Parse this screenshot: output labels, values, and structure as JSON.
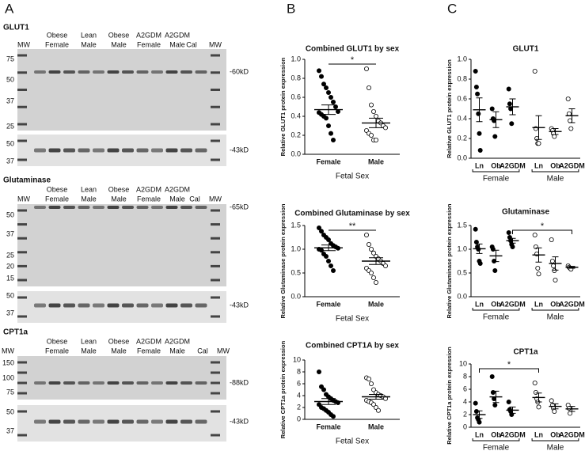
{
  "panel_a": {
    "letter": "A",
    "blots": [
      {
        "title": "GLUT1",
        "lanes": [
          {
            "lines": [
              "MW"
            ]
          },
          {
            "lines": [
              "Obese",
              "Female"
            ]
          },
          {
            "lines": [
              "Lean",
              "Male"
            ]
          },
          {
            "lines": [
              "Obese",
              "Male"
            ]
          },
          {
            "lines": [
              "A2GDM",
              "Female"
            ]
          },
          {
            "lines": [
              "A2GDM",
              "Male"
            ]
          },
          {
            "lines": [
              "Cal"
            ]
          },
          {
            "lines": [
              "MW"
            ]
          }
        ],
        "markers": [
          "75",
          "50",
          "37",
          "25"
        ],
        "band_label": "-60kD",
        "loading_markers": [
          "50",
          "37"
        ],
        "loading_label": "-43kD"
      },
      {
        "title": "Glutaminase",
        "lanes": [
          {
            "lines": [
              "MW"
            ]
          },
          {
            "lines": [
              "Obese",
              "Female"
            ]
          },
          {
            "lines": [
              "Lean",
              "Male"
            ]
          },
          {
            "lines": [
              "Obese",
              "Male"
            ]
          },
          {
            "lines": [
              "A2GDM",
              "Female"
            ]
          },
          {
            "lines": [
              "A2GDM",
              "Male"
            ]
          },
          {
            "lines": [
              "Cal"
            ]
          },
          {
            "lines": [
              "MW"
            ]
          }
        ],
        "markers": [
          "50",
          "37",
          "25",
          "20",
          "15"
        ],
        "band_label": "-65kD",
        "loading_markers": [
          "50",
          "37"
        ],
        "loading_label": "-43kD"
      },
      {
        "title": "CPT1a",
        "lanes": [
          {
            "lines": [
              "MW"
            ]
          },
          {
            "lines": [
              "Obese",
              "Female"
            ]
          },
          {
            "lines": [
              "Lean",
              "Male"
            ]
          },
          {
            "lines": [
              "Obese",
              "Male"
            ]
          },
          {
            "lines": [
              "A2GDM",
              "Female"
            ]
          },
          {
            "lines": [
              "A2GDM",
              "Male"
            ]
          },
          {
            "lines": [
              "Cal"
            ]
          },
          {
            "lines": [
              "MW"
            ]
          }
        ],
        "markers": [
          "150",
          "100",
          "75"
        ],
        "band_label": "-88kD",
        "loading_markers": [
          "50",
          "37"
        ],
        "loading_label": "-43kD"
      }
    ]
  },
  "panel_b": {
    "letter": "B"
  },
  "panel_c": {
    "letter": "C"
  },
  "chart_data": [
    {
      "type": "dot",
      "title": "Combined GLUT1 by sex",
      "y_label": "Relative GLUT1 protein expression",
      "x_label": "Fetal Sex",
      "categories": [
        "Female",
        "Male"
      ],
      "groups": [
        {
          "marker": "filled",
          "values": [
            0.88,
            0.82,
            0.74,
            0.7,
            0.65,
            0.6,
            0.55,
            0.5,
            0.45,
            0.44,
            0.42,
            0.4,
            0.38,
            0.3,
            0.22,
            0.15
          ],
          "mean": 0.47,
          "sem": 0.05
        },
        {
          "marker": "open",
          "values": [
            0.9,
            0.7,
            0.52,
            0.45,
            0.4,
            0.35,
            0.33,
            0.3,
            0.28,
            0.25,
            0.22,
            0.2,
            0.15,
            0.15
          ],
          "mean": 0.33,
          "sem": 0.05
        }
      ],
      "ylim": [
        0,
        1
      ],
      "yticks": [
        {
          "value": 0,
          "label": "0.0"
        },
        0.2,
        0.4,
        0.6,
        0.8,
        {
          "value": 1,
          "label": "1.0"
        }
      ],
      "significance": [
        {
          "label": "*",
          "between": [
            0,
            1
          ]
        }
      ]
    },
    {
      "type": "dot",
      "title": "Combined Glutaminase by sex",
      "y_label": "Relative Glutaminase protein expression",
      "x_label": "Fetal Sex",
      "categories": [
        "Female",
        "Male"
      ],
      "groups": [
        {
          "marker": "filled",
          "values": [
            1.45,
            1.38,
            1.3,
            1.25,
            1.2,
            1.12,
            1.08,
            1.05,
            1.02,
            1.0,
            0.98,
            0.9,
            0.85,
            0.75,
            0.65,
            0.55
          ],
          "mean": 1.03,
          "sem": 0.06
        },
        {
          "marker": "open",
          "values": [
            1.3,
            1.1,
            1.0,
            0.92,
            0.85,
            0.8,
            0.75,
            0.7,
            0.65,
            0.6,
            0.55,
            0.5,
            0.4,
            0.3
          ],
          "mean": 0.75,
          "sem": 0.07
        }
      ],
      "ylim": [
        0,
        1.5
      ],
      "yticks": [
        {
          "value": 0,
          "label": "0.0"
        },
        0.5,
        {
          "value": 1,
          "label": "1.0"
        },
        1.5
      ],
      "significance": [
        {
          "label": "**",
          "between": [
            0,
            1
          ]
        }
      ]
    },
    {
      "type": "dot",
      "title": "Combined CPT1A by sex",
      "y_label": "Relative CPT1a protein expression",
      "x_label": "Fetal Sex",
      "categories": [
        "Female",
        "Male"
      ],
      "groups": [
        {
          "marker": "filled",
          "values": [
            8.0,
            5.5,
            5.0,
            4.2,
            3.8,
            3.5,
            3.2,
            3.0,
            2.8,
            2.5,
            2.0,
            1.8,
            1.5,
            1.2,
            0.8,
            0.5
          ],
          "mean": 3.0,
          "sem": 0.5
        },
        {
          "marker": "open",
          "values": [
            7.0,
            6.8,
            6.0,
            5.0,
            4.5,
            4.2,
            4.0,
            3.8,
            3.5,
            3.2,
            3.0,
            2.8,
            2.5,
            2.0,
            1.5
          ],
          "mean": 3.8,
          "sem": 0.4
        }
      ],
      "ylim": [
        0,
        10
      ],
      "yticks": [
        0,
        2,
        4,
        6,
        8,
        10
      ]
    },
    {
      "type": "dot",
      "title": "GLUT1",
      "y_label": "Relative GLUT1 protein expression",
      "categories": [
        "Ln",
        "Ob",
        "A2GDM",
        "Ln",
        "Ob",
        "A2GDM"
      ],
      "group_labels": [
        "Female",
        "Male"
      ],
      "groups": [
        {
          "marker": "filled",
          "values": [
            0.88,
            0.72,
            0.65,
            0.45,
            0.25,
            0.08
          ],
          "mean": 0.49,
          "sem": 0.12
        },
        {
          "marker": "filled",
          "values": [
            0.5,
            0.4,
            0.38,
            0.22
          ],
          "mean": 0.39,
          "sem": 0.08
        },
        {
          "marker": "filled",
          "values": [
            0.7,
            0.55,
            0.5,
            0.35
          ],
          "mean": 0.52,
          "sem": 0.08
        },
        {
          "marker": "open",
          "values": [
            0.88,
            0.3,
            0.2,
            0.15,
            0.15
          ],
          "mean": 0.31,
          "sem": 0.12
        },
        {
          "marker": "open",
          "values": [
            0.3,
            0.28,
            0.25,
            0.22
          ],
          "mean": 0.27,
          "sem": 0.03
        },
        {
          "marker": "open",
          "values": [
            0.6,
            0.45,
            0.38,
            0.3
          ],
          "mean": 0.43,
          "sem": 0.07
        }
      ],
      "ylim": [
        0,
        1
      ],
      "yticks": [
        {
          "value": 0,
          "label": "0.0"
        },
        0.2,
        0.4,
        0.6,
        0.8,
        {
          "value": 1,
          "label": "1.0"
        }
      ]
    },
    {
      "type": "dot",
      "title": "Glutaminase",
      "y_label": "Relative Glutaminase protein expression",
      "categories": [
        "Ln",
        "Ob",
        "A2GDM",
        "Ln",
        "Ob",
        "A2GDM"
      ],
      "group_labels": [
        "Female",
        "Male"
      ],
      "groups": [
        {
          "marker": "filled",
          "values": [
            1.42,
            1.15,
            1.05,
            1.0,
            0.75,
            0.7
          ],
          "mean": 1.01,
          "sem": 0.1
        },
        {
          "marker": "filled",
          "values": [
            1.05,
            1.0,
            0.75,
            0.55
          ],
          "mean": 0.86,
          "sem": 0.12
        },
        {
          "marker": "filled",
          "values": [
            1.35,
            1.25,
            1.18,
            1.1,
            1.05
          ],
          "mean": 1.18,
          "sem": 0.05
        },
        {
          "marker": "open",
          "values": [
            1.3,
            1.05,
            0.9,
            0.6,
            0.48
          ],
          "mean": 0.88,
          "sem": 0.15
        },
        {
          "marker": "open",
          "values": [
            1.2,
            0.75,
            0.65,
            0.55,
            0.35
          ],
          "mean": 0.7,
          "sem": 0.14
        },
        {
          "marker": "open",
          "values": [
            0.65,
            0.62,
            0.6,
            0.58
          ],
          "mean": 0.62,
          "sem": 0.02
        }
      ],
      "ylim": [
        0,
        1.5
      ],
      "yticks": [
        {
          "value": 0,
          "label": "0.0"
        },
        0.5,
        {
          "value": 1,
          "label": "1.0"
        },
        1.5
      ],
      "significance": [
        {
          "label": "*",
          "between": [
            2,
            5
          ]
        }
      ]
    },
    {
      "type": "dot",
      "title": "CPT1a",
      "y_label": "Relative CPT1a protein expression",
      "categories": [
        "Ln",
        "Ob",
        "A2GDM",
        "Ln",
        "Ob",
        "A2GDM"
      ],
      "group_labels": [
        "Female",
        "Male"
      ],
      "groups": [
        {
          "marker": "filled",
          "values": [
            3.8,
            2.5,
            1.5,
            1.2,
            0.8
          ],
          "mean": 2.0,
          "sem": 0.6
        },
        {
          "marker": "filled",
          "values": [
            8.0,
            5.5,
            4.5,
            3.5
          ],
          "mean": 4.8,
          "sem": 0.9
        },
        {
          "marker": "filled",
          "values": [
            4.0,
            2.8,
            2.5,
            2.0
          ],
          "mean": 2.7,
          "sem": 0.5
        },
        {
          "marker": "open",
          "values": [
            7.0,
            5.5,
            4.5,
            4.0,
            3.2
          ],
          "mean": 4.7,
          "sem": 0.7
        },
        {
          "marker": "open",
          "values": [
            4.2,
            3.5,
            3.0,
            2.5
          ],
          "mean": 3.3,
          "sem": 0.4
        },
        {
          "marker": "open",
          "values": [
            3.5,
            3.0,
            2.2
          ],
          "mean": 2.9,
          "sem": 0.4
        }
      ],
      "ylim": [
        0,
        10
      ],
      "yticks": [
        0,
        2,
        4,
        6,
        8,
        10
      ],
      "significance": [
        {
          "label": "*",
          "between": [
            0,
            3
          ]
        }
      ]
    }
  ]
}
